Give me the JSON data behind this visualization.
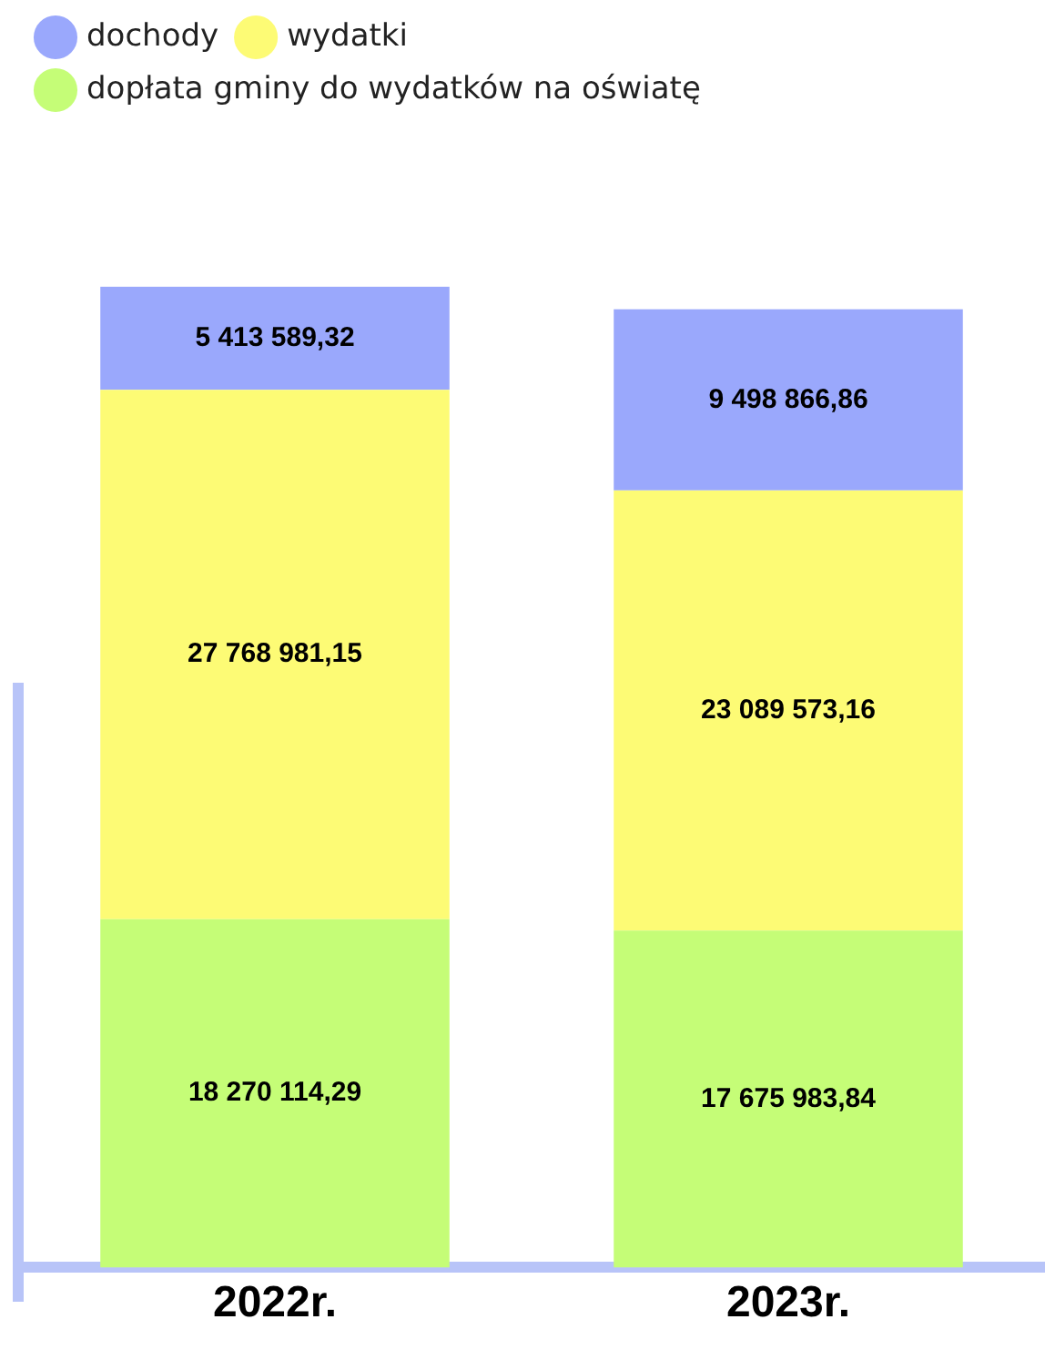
{
  "chart_data": {
    "type": "bar",
    "stacked": true,
    "categories": [
      "2022r.",
      "2023r."
    ],
    "series": [
      {
        "name": "dopłata gminy do wydatków na oświatę",
        "color": "#c5fd77",
        "values": [
          18270114.29,
          17675983.84
        ],
        "value_labels": [
          "18 270 114,29",
          "17 675 983,84"
        ]
      },
      {
        "name": "wydatki",
        "color": "#fdfb75",
        "values": [
          27768981.15,
          23089573.16
        ],
        "value_labels": [
          "27 768 981,15",
          "23 089 573,16"
        ]
      },
      {
        "name": "dochody",
        "color": "#9aa8fc",
        "values": [
          5413589.32,
          9498866.86
        ],
        "value_labels": [
          "5 413 589,32",
          "9 498 866,86"
        ]
      }
    ],
    "legend": "top left",
    "grid": false,
    "tick_labels": "x"
  }
}
